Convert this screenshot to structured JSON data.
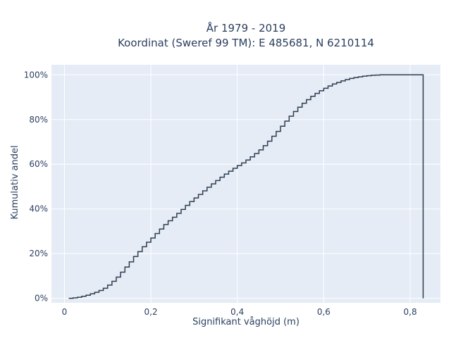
{
  "chart_data": {
    "type": "line",
    "subtype": "ecdf-step",
    "title_lines": [
      "År 1979 - 2019",
      "Koordinat (Sweref 99 TM): E 485681, N 6210114"
    ],
    "xlabel": "Signifikant våghöjd (m)",
    "ylabel": "Kumulativ andel",
    "xlim": [
      -0.03,
      0.87
    ],
    "ylim": [
      -0.02,
      1.045
    ],
    "x_ticks": [
      0,
      0.2,
      0.4,
      0.6,
      0.8
    ],
    "x_tick_labels": [
      "0",
      "0,2",
      "0,4",
      "0,6",
      "0,8"
    ],
    "y_ticks": [
      0,
      0.2,
      0.4,
      0.6,
      0.8,
      1.0
    ],
    "y_tick_labels": [
      "0%",
      "20%",
      "40%",
      "60%",
      "80%",
      "100%"
    ],
    "grid": true,
    "colors": {
      "line": "#2f3e50",
      "plot_bg": "#e5ecf6",
      "grid": "#ffffff",
      "text": "#2a3f5f"
    },
    "series": [
      {
        "points": [
          [
            0.01,
            0.0
          ],
          [
            0.02,
            0.002
          ],
          [
            0.03,
            0.005
          ],
          [
            0.04,
            0.009
          ],
          [
            0.05,
            0.014
          ],
          [
            0.06,
            0.02
          ],
          [
            0.07,
            0.027
          ],
          [
            0.08,
            0.035
          ],
          [
            0.09,
            0.045
          ],
          [
            0.1,
            0.059
          ],
          [
            0.11,
            0.076
          ],
          [
            0.12,
            0.095
          ],
          [
            0.13,
            0.117
          ],
          [
            0.14,
            0.14
          ],
          [
            0.15,
            0.163
          ],
          [
            0.16,
            0.187
          ],
          [
            0.17,
            0.209
          ],
          [
            0.18,
            0.231
          ],
          [
            0.19,
            0.251
          ],
          [
            0.2,
            0.27
          ],
          [
            0.21,
            0.29
          ],
          [
            0.22,
            0.31
          ],
          [
            0.23,
            0.33
          ],
          [
            0.24,
            0.347
          ],
          [
            0.25,
            0.363
          ],
          [
            0.26,
            0.38
          ],
          [
            0.27,
            0.398
          ],
          [
            0.28,
            0.416
          ],
          [
            0.29,
            0.433
          ],
          [
            0.3,
            0.449
          ],
          [
            0.31,
            0.465
          ],
          [
            0.32,
            0.481
          ],
          [
            0.33,
            0.497
          ],
          [
            0.34,
            0.512
          ],
          [
            0.35,
            0.527
          ],
          [
            0.36,
            0.542
          ],
          [
            0.37,
            0.556
          ],
          [
            0.38,
            0.569
          ],
          [
            0.39,
            0.582
          ],
          [
            0.4,
            0.594
          ],
          [
            0.41,
            0.606
          ],
          [
            0.42,
            0.619
          ],
          [
            0.43,
            0.633
          ],
          [
            0.44,
            0.648
          ],
          [
            0.45,
            0.664
          ],
          [
            0.46,
            0.683
          ],
          [
            0.47,
            0.703
          ],
          [
            0.48,
            0.725
          ],
          [
            0.49,
            0.747
          ],
          [
            0.5,
            0.77
          ],
          [
            0.51,
            0.793
          ],
          [
            0.52,
            0.815
          ],
          [
            0.53,
            0.836
          ],
          [
            0.54,
            0.855
          ],
          [
            0.55,
            0.873
          ],
          [
            0.56,
            0.889
          ],
          [
            0.57,
            0.904
          ],
          [
            0.58,
            0.917
          ],
          [
            0.59,
            0.929
          ],
          [
            0.6,
            0.94
          ],
          [
            0.61,
            0.95
          ],
          [
            0.62,
            0.959
          ],
          [
            0.63,
            0.966
          ],
          [
            0.64,
            0.973
          ],
          [
            0.65,
            0.979
          ],
          [
            0.66,
            0.984
          ],
          [
            0.67,
            0.988
          ],
          [
            0.68,
            0.991
          ],
          [
            0.69,
            0.994
          ],
          [
            0.7,
            0.996
          ],
          [
            0.71,
            0.998
          ],
          [
            0.72,
            0.999
          ],
          [
            0.73,
            1.0
          ],
          [
            0.83,
            1.0
          ]
        ],
        "final_drop_x": 0.83
      }
    ]
  }
}
